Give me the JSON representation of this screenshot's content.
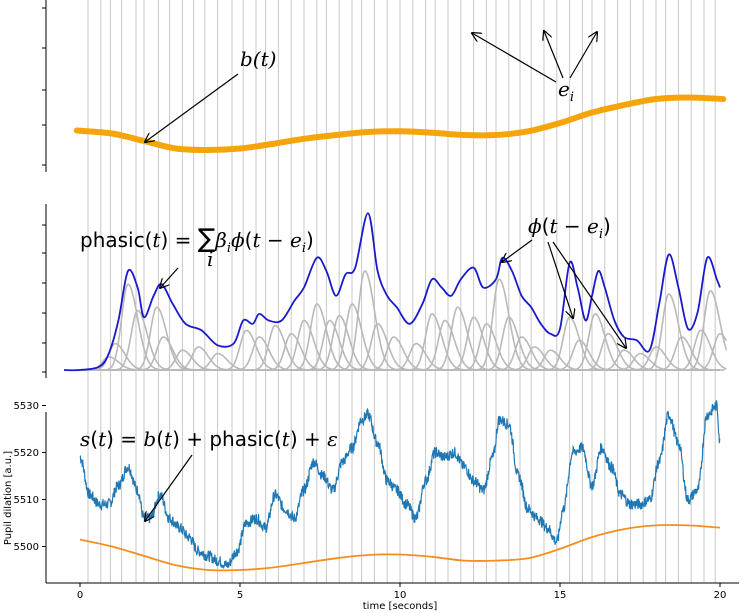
{
  "chart_data": {
    "type": "line",
    "title": "",
    "xlabel": "time [seconds]",
    "ylabel": "Pupil dilation [a.u.]",
    "xlim": [
      -0.3,
      20.3
    ],
    "ylim": [
      5493,
      5534
    ],
    "x_ticks": [
      0,
      5,
      10,
      15,
      20
    ],
    "y_ticks": [
      5500,
      5510,
      5520,
      5530
    ],
    "event_times": [
      0.25,
      0.65,
      0.95,
      1.3,
      1.75,
      2.0,
      2.45,
      2.8,
      3.2,
      3.55,
      3.9,
      4.3,
      4.75,
      5.1,
      5.5,
      5.8,
      6.2,
      6.6,
      7.0,
      7.4,
      7.7,
      8.1,
      8.5,
      8.8,
      9.2,
      9.6,
      10.0,
      10.4,
      10.8,
      11.1,
      11.5,
      11.9,
      12.3,
      12.7,
      13.0,
      13.4,
      13.75,
      14.1,
      14.5,
      14.9,
      15.3,
      15.7,
      16.0,
      16.4,
      16.8,
      17.2,
      17.6,
      18.0,
      18.3,
      18.7,
      19.1,
      19.5,
      19.85
    ],
    "panels": [
      {
        "name": "baseline",
        "label": "b(t)",
        "events_label": "e_i",
        "series": [
          {
            "name": "b(t)",
            "color": "#f5a50a",
            "x": [
              -0.1,
              1,
              2,
              3,
              4,
              5,
              6,
              7,
              8,
              9,
              10,
              11,
              12,
              13,
              14,
              15,
              16,
              17,
              18,
              19,
              20.1
            ],
            "y": [
              0.16,
              0.12,
              0.02,
              -0.08,
              -0.1,
              -0.08,
              -0.02,
              0.05,
              0.1,
              0.14,
              0.15,
              0.13,
              0.1,
              0.1,
              0.15,
              0.26,
              0.4,
              0.5,
              0.58,
              0.6,
              0.58
            ]
          }
        ]
      },
      {
        "name": "phasic",
        "label": "phasic(t) = Σ βᵢ φ(t − eᵢ)",
        "kernel_label": "φ(t − eᵢ)",
        "series": [
          {
            "name": "phasic(t)",
            "color": "#1a1acd",
            "x": [
              0,
              0.6,
              0.9,
              1.2,
              1.5,
              1.8,
              2.0,
              2.3,
              2.55,
              2.9,
              3.3,
              3.8,
              4.3,
              4.8,
              5.1,
              5.4,
              5.6,
              5.9,
              6.3,
              6.7,
              7.0,
              7.4,
              7.7,
              8.0,
              8.3,
              8.6,
              9.0,
              9.3,
              9.6,
              9.9,
              10.3,
              10.7,
              11.0,
              11.3,
              11.6,
              11.9,
              12.3,
              12.6,
              13.0,
              13.2,
              13.5,
              13.8,
              14.1,
              14.4,
              14.7,
              15.0,
              15.3,
              15.55,
              15.8,
              16.0,
              16.2,
              16.4,
              16.7,
              17.0,
              17.4,
              17.8,
              18.1,
              18.4,
              18.7,
              19.0,
              19.3,
              19.6,
              19.9,
              20.0
            ],
            "y": [
              0.0,
              0.02,
              0.1,
              0.3,
              0.6,
              0.5,
              0.32,
              0.45,
              0.52,
              0.4,
              0.28,
              0.24,
              0.15,
              0.16,
              0.3,
              0.28,
              0.34,
              0.3,
              0.3,
              0.42,
              0.5,
              0.68,
              0.6,
              0.45,
              0.58,
              0.62,
              0.95,
              0.6,
              0.45,
              0.38,
              0.28,
              0.4,
              0.55,
              0.5,
              0.45,
              0.55,
              0.62,
              0.5,
              0.55,
              0.68,
              0.6,
              0.45,
              0.38,
              0.28,
              0.22,
              0.25,
              0.65,
              0.5,
              0.3,
              0.45,
              0.6,
              0.5,
              0.3,
              0.2,
              0.18,
              0.12,
              0.4,
              0.7,
              0.5,
              0.25,
              0.35,
              0.68,
              0.55,
              0.5
            ]
          },
          {
            "name": "kernels",
            "color": "#b9b9b9",
            "peaks": [
              {
                "t": 1.5,
                "h": 0.52
              },
              {
                "t": 1.8,
                "h": 0.36
              },
              {
                "t": 2.4,
                "h": 0.38
              },
              {
                "t": 2.6,
                "h": 0.2
              },
              {
                "t": 3.2,
                "h": 0.12
              },
              {
                "t": 3.7,
                "h": 0.14
              },
              {
                "t": 4.3,
                "h": 0.1
              },
              {
                "t": 5.2,
                "h": 0.24
              },
              {
                "t": 5.6,
                "h": 0.2
              },
              {
                "t": 6.1,
                "h": 0.27
              },
              {
                "t": 6.6,
                "h": 0.22
              },
              {
                "t": 7.0,
                "h": 0.3
              },
              {
                "t": 7.4,
                "h": 0.4
              },
              {
                "t": 7.8,
                "h": 0.3
              },
              {
                "t": 8.1,
                "h": 0.33
              },
              {
                "t": 8.5,
                "h": 0.4
              },
              {
                "t": 8.9,
                "h": 0.6
              },
              {
                "t": 9.3,
                "h": 0.28
              },
              {
                "t": 9.8,
                "h": 0.2
              },
              {
                "t": 10.5,
                "h": 0.16
              },
              {
                "t": 11.0,
                "h": 0.34
              },
              {
                "t": 11.4,
                "h": 0.3
              },
              {
                "t": 11.8,
                "h": 0.38
              },
              {
                "t": 12.3,
                "h": 0.32
              },
              {
                "t": 12.7,
                "h": 0.28
              },
              {
                "t": 13.1,
                "h": 0.55
              },
              {
                "t": 13.4,
                "h": 0.32
              },
              {
                "t": 13.8,
                "h": 0.2
              },
              {
                "t": 14.2,
                "h": 0.14
              },
              {
                "t": 14.7,
                "h": 0.12
              },
              {
                "t": 15.3,
                "h": 0.32
              },
              {
                "t": 15.6,
                "h": 0.18
              },
              {
                "t": 16.1,
                "h": 0.34
              },
              {
                "t": 16.5,
                "h": 0.22
              },
              {
                "t": 17.0,
                "h": 0.12
              },
              {
                "t": 17.5,
                "h": 0.1
              },
              {
                "t": 18.0,
                "h": 0.14
              },
              {
                "t": 18.4,
                "h": 0.46
              },
              {
                "t": 18.8,
                "h": 0.2
              },
              {
                "t": 19.4,
                "h": 0.24
              },
              {
                "t": 19.7,
                "h": 0.48
              },
              {
                "t": 20.0,
                "h": 0.22
              },
              {
                "t": 1.1,
                "h": 0.16
              },
              {
                "t": 0.9,
                "h": 0.08
              }
            ]
          }
        ]
      },
      {
        "name": "signal",
        "label": "s(t) = b(t) + phasic(t) + ε",
        "series": [
          {
            "name": "s(t)",
            "color": "#1f77b4",
            "x": [
              0,
              0.3,
              0.6,
              0.9,
              1.2,
              1.5,
              1.8,
              2.0,
              2.2,
              2.5,
              2.8,
              3.1,
              3.4,
              3.7,
              4.0,
              4.3,
              4.6,
              4.9,
              5.2,
              5.5,
              5.8,
              6.1,
              6.4,
              6.7,
              7.0,
              7.3,
              7.6,
              7.9,
              8.2,
              8.5,
              8.8,
              9.0,
              9.3,
              9.6,
              9.9,
              10.2,
              10.5,
              10.8,
              11.1,
              11.4,
              11.7,
              12.0,
              12.3,
              12.6,
              12.9,
              13.1,
              13.4,
              13.7,
              14.0,
              14.3,
              14.6,
              14.9,
              15.1,
              15.4,
              15.7,
              16.0,
              16.3,
              16.6,
              16.9,
              17.2,
              17.5,
              17.8,
              18.1,
              18.4,
              18.7,
              19.0,
              19.3,
              19.6,
              19.9,
              20.0
            ],
            "y": [
              5519,
              5511,
              5509,
              5509,
              5513,
              5517,
              5512,
              5506,
              5506,
              5511,
              5506,
              5504,
              5502,
              5499,
              5498,
              5497,
              5496,
              5499,
              5505,
              5506,
              5504,
              5511,
              5508,
              5506,
              5512,
              5518,
              5515,
              5512,
              5518,
              5521,
              5527,
              5528,
              5522,
              5514,
              5512,
              5509,
              5506,
              5514,
              5520,
              5519,
              5520,
              5517,
              5514,
              5512,
              5519,
              5527,
              5526,
              5515,
              5508,
              5506,
              5504,
              5501,
              5508,
              5520,
              5521,
              5513,
              5521,
              5517,
              5511,
              5509,
              5509,
              5510,
              5518,
              5528,
              5522,
              5510,
              5512,
              5528,
              5530,
              5522
            ]
          },
          {
            "name": "b(t)",
            "color": "#f58e20",
            "x": [
              0,
              1,
              2,
              3,
              4,
              5,
              6,
              7,
              8,
              9,
              10,
              11,
              12,
              13,
              14,
              15,
              16,
              17,
              18,
              19,
              20
            ],
            "y": [
              5501.5,
              5500,
              5498,
              5496,
              5495,
              5495,
              5495.5,
              5496.5,
              5497.5,
              5498.2,
              5498.3,
              5497.8,
              5497,
              5497,
              5497.5,
              5499.5,
              5502,
              5503.7,
              5504.5,
              5504.5,
              5504
            ]
          }
        ]
      }
    ]
  }
}
